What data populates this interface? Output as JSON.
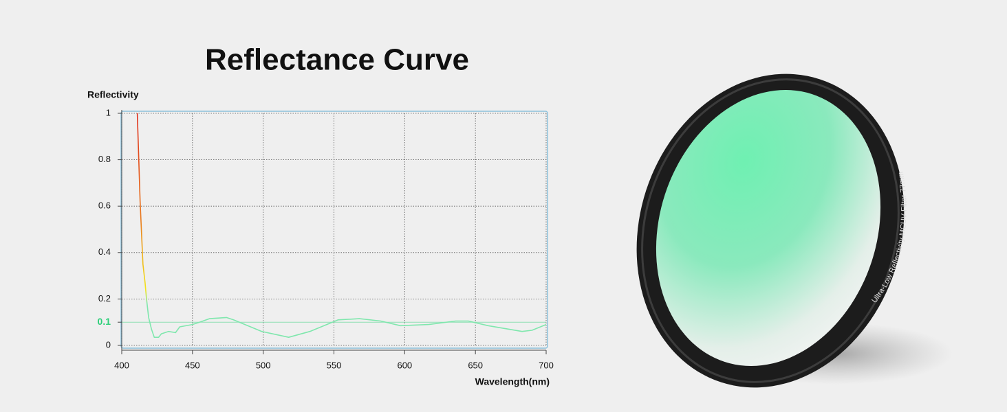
{
  "chart_data": {
    "type": "line",
    "title": "Reflectance Curve",
    "y_label": "Reflectivity",
    "x_label": "Wavelength(nm)",
    "xlim": [
      400,
      700
    ],
    "ylim": [
      0,
      1
    ],
    "xticks": [
      400,
      450,
      500,
      550,
      600,
      650,
      700
    ],
    "yticks": [
      0,
      0.1,
      0.2,
      0.4,
      0.6,
      0.8,
      1
    ],
    "highlight_tick": 0.1,
    "highlight_color": "#2ecf7a",
    "grid": true,
    "series": [
      {
        "name": "Reflectivity",
        "color": "#7fe7ad",
        "gradient": [
          "#e0301e",
          "#e8781c",
          "#f3e61c",
          "#7fe7ad"
        ],
        "x": [
          411,
          413,
          415,
          416.5,
          417.5,
          419,
          421,
          423,
          426,
          428,
          433,
          438,
          441,
          450,
          455,
          462,
          474,
          479,
          499,
          518,
          533,
          553,
          568,
          583,
          597,
          617,
          636,
          645,
          659,
          683,
          690,
          700
        ],
        "values": [
          1,
          0.62,
          0.35,
          0.27,
          0.2,
          0.12,
          0.07,
          0.035,
          0.035,
          0.05,
          0.06,
          0.055,
          0.08,
          0.09,
          0.1,
          0.115,
          0.12,
          0.11,
          0.06,
          0.035,
          0.06,
          0.11,
          0.115,
          0.105,
          0.085,
          0.09,
          0.105,
          0.105,
          0.085,
          0.06,
          0.065,
          0.09
        ]
      }
    ]
  },
  "product": {
    "ring_text": "Ultra-Low  Reflectivity  MCUV  Filter  77mm"
  }
}
